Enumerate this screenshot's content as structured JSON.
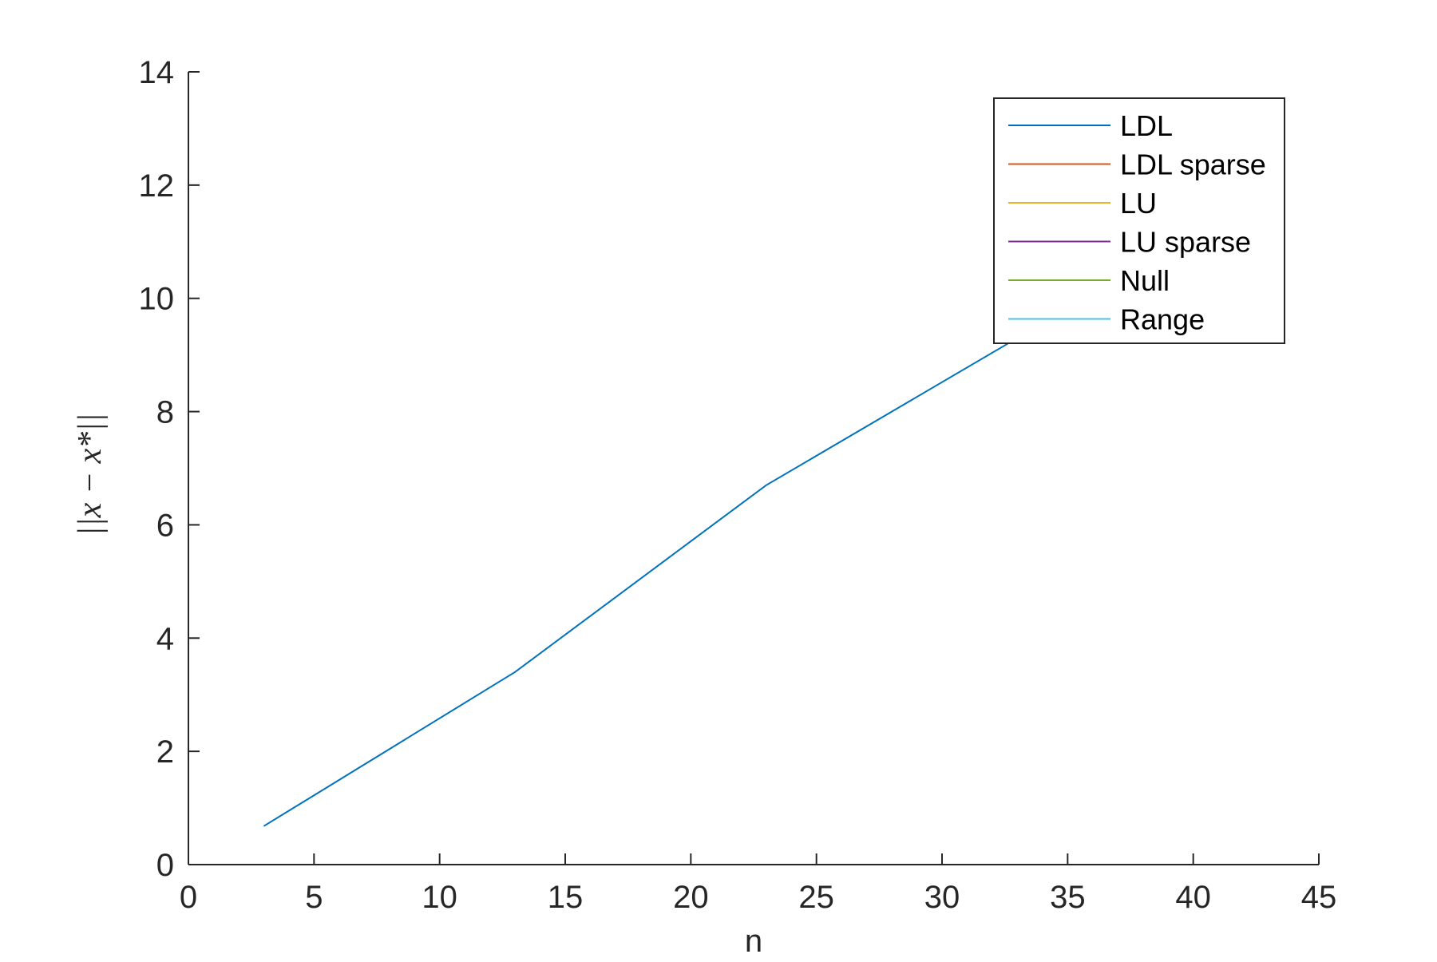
{
  "chart_data": {
    "type": "line",
    "title": "",
    "xlabel": "n",
    "ylabel": "||x − x*||",
    "xlim": [
      0,
      45
    ],
    "ylim": [
      0,
      14
    ],
    "xticks": [
      0,
      5,
      10,
      15,
      20,
      25,
      30,
      35,
      40,
      45
    ],
    "yticks": [
      0,
      2,
      4,
      6,
      8,
      10,
      12,
      14
    ],
    "grid": false,
    "legend_position": "top-right",
    "series": [
      {
        "name": "LDL",
        "color": "#0072BD",
        "x": [
          3,
          13,
          23,
          33,
          43
        ],
        "y": [
          0.68,
          3.4,
          6.7,
          9.3,
          12.0
        ]
      },
      {
        "name": "LDL sparse",
        "color": "#D95319",
        "x": [
          3,
          13,
          23,
          33,
          43
        ],
        "y": [
          0,
          0,
          0,
          0,
          0
        ]
      },
      {
        "name": "LU",
        "color": "#EDB120",
        "x": [
          3,
          13,
          23,
          33,
          43
        ],
        "y": [
          0,
          0,
          0,
          0,
          0
        ]
      },
      {
        "name": "LU sparse",
        "color": "#7E2F8E",
        "x": [
          3,
          13,
          23,
          33,
          43
        ],
        "y": [
          0,
          0,
          0,
          0,
          0
        ]
      },
      {
        "name": "Null",
        "color": "#77AC30",
        "x": [
          3,
          13,
          23,
          33,
          43
        ],
        "y": [
          0,
          0,
          0,
          0,
          0
        ]
      },
      {
        "name": "Range",
        "color": "#4DBEEE",
        "x": [
          3,
          13,
          23,
          33,
          43
        ],
        "y": [
          0,
          0,
          0,
          0,
          0
        ]
      }
    ]
  }
}
